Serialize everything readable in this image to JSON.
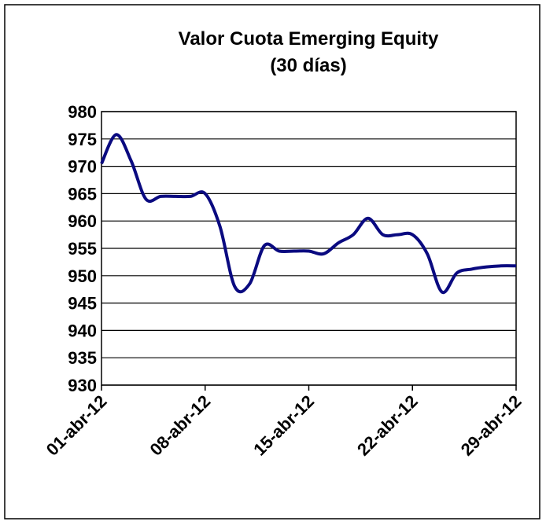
{
  "chart_data": {
    "type": "line",
    "title": [
      "Valor Cuota Emerging Equity",
      "(30 días)"
    ],
    "categories": [
      "01-abr-12",
      null,
      null,
      null,
      null,
      null,
      null,
      "08-abr-12",
      null,
      null,
      null,
      null,
      null,
      null,
      "15-abr-12",
      null,
      null,
      null,
      null,
      null,
      null,
      "22-abr-12",
      null,
      null,
      null,
      null,
      null,
      null,
      "29-abr-12"
    ],
    "series": [
      {
        "name": "Valor Cuota",
        "color": "#0a0a80",
        "values": [
          970.5,
          975.8,
          971,
          964,
          964.5,
          964.5,
          964.5,
          965,
          959,
          948,
          948.5,
          955.5,
          954.5,
          954.5,
          954.5,
          954,
          956,
          957.5,
          960.5,
          957.5,
          957.5,
          957.5,
          954,
          947,
          950.5,
          951.2,
          951.6,
          951.8,
          951.8
        ]
      }
    ],
    "ylim": [
      930,
      980
    ],
    "yticks": [
      930,
      935,
      940,
      945,
      950,
      955,
      960,
      965,
      970,
      975,
      980
    ],
    "grid": true
  }
}
